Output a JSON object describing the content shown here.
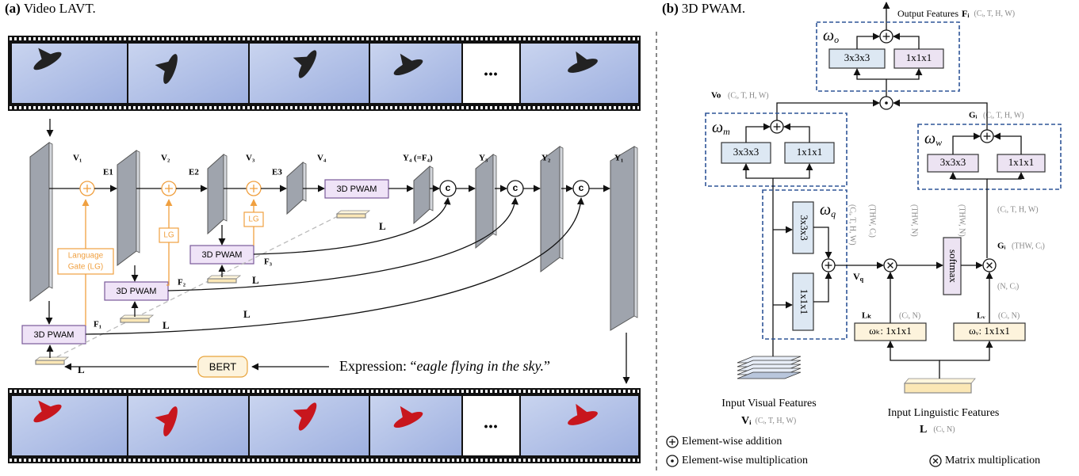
{
  "panel_a": {
    "label": "(a)",
    "title": "Video LAVT.",
    "ellipsis": [
      "...",
      "..."
    ],
    "visual_features": [
      "V₁",
      "V₂",
      "V₃",
      "V₄"
    ],
    "encoder_stages": [
      "E1",
      "E2",
      "E3"
    ],
    "decoder_features": [
      "Y₄ (=F₄)",
      "Y₃",
      "Y₂",
      "Y₁"
    ],
    "pwam_blocks": [
      "3D PWAM",
      "3D PWAM",
      "3D PWAM",
      "3D PWAM"
    ],
    "fused_features": [
      "F₁",
      "F₂",
      "F₃"
    ],
    "language_gate": [
      "Language",
      "Gate (LG)"
    ],
    "gate_short": [
      "LG",
      "LG"
    ],
    "concat_ops": [
      "c",
      "c",
      "c"
    ],
    "language_labels": [
      "L",
      "L",
      "L",
      "L",
      "L"
    ],
    "bert": "BERT",
    "expression_label": "Expression: “",
    "expression": "eagle flying in the sky.",
    "expression_end": "”"
  },
  "panel_b": {
    "label": "(b)",
    "title": "3D PWAM.",
    "output": {
      "label": "Output Features",
      "symbol": "Fᵢ",
      "shape": "(Cᵢ, T, H, W)"
    },
    "omega_o": {
      "symbol": "ω",
      "subscript": "o"
    },
    "omega_m": {
      "symbol": "ω",
      "subscript": "m"
    },
    "omega_w": {
      "symbol": "ω",
      "subscript": "w"
    },
    "omega_q": {
      "symbol": "ω",
      "subscript": "q"
    },
    "conv_blocks": [
      "3x3x3",
      "1x1x1",
      "3x3x3",
      "1x1x1",
      "3x3x3",
      "1x1x1",
      "3x3x3",
      "1x1x1"
    ],
    "vo": {
      "symbol": "Vo",
      "shape": "(Cᵢ, T, H, W)"
    },
    "gi_top": {
      "symbol": "Gᵢ",
      "shape": "(Cᵢ, T, H, W)"
    },
    "gi_below_w": "(Cᵢ, T, H, W)",
    "rotated_shapes": [
      "(Cᵢ, T, H, W)",
      "(THW, Cᵢ)",
      "(THW, N)",
      "(THW, N)"
    ],
    "vq": {
      "symbol": "V",
      "subscript": "q"
    },
    "softmax": "softmax",
    "gi_mid": {
      "symbol": "Gᵢ",
      "shape": "(THW, Cᵢ)"
    },
    "gi_mid_shape": "(N, Cᵢ)",
    "lk": {
      "symbol": "Lₖ",
      "shape": "(Cₗ, N)"
    },
    "lv": {
      "symbol": "Lᵥ",
      "shape": "(Cₗ, N)"
    },
    "wk": "ωₖ: 1x1x1",
    "wv": "ωᵥ: 1x1x1",
    "input_visual": {
      "label": "Input Visual Features",
      "symbol": "Vᵢ",
      "shape": "(Cᵢ, T, H, W)"
    },
    "input_linguistic": {
      "label": "Input Linguistic Features",
      "symbol": "L",
      "shape": "(Cₗ, N)"
    },
    "legend": [
      "Element-wise addition",
      "Element-wise multiplication",
      "Matrix multiplication"
    ]
  }
}
